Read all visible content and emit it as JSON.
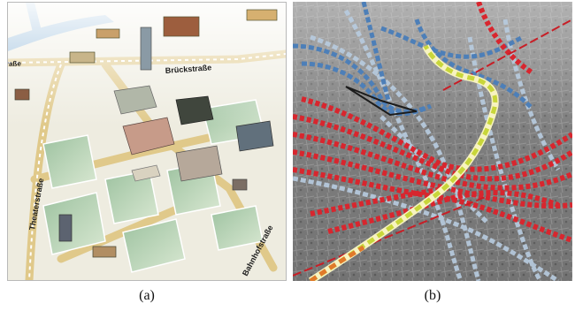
{
  "figure": {
    "panel_a": {
      "caption": "(a)",
      "street_labels": {
        "brueckstrasse": "Brückstraße",
        "theaterstrasse": "Theaterstraße",
        "bahnhofstrasse": "Bahnhofstraße",
        "strasse_fragment": "raße"
      }
    },
    "panel_b": {
      "caption": "(b)",
      "tube_colors": {
        "red": "#d8262e",
        "blue": "#4d7fb8",
        "light_blue": "#b8cce0",
        "highlight": "#c8d63a"
      }
    }
  }
}
